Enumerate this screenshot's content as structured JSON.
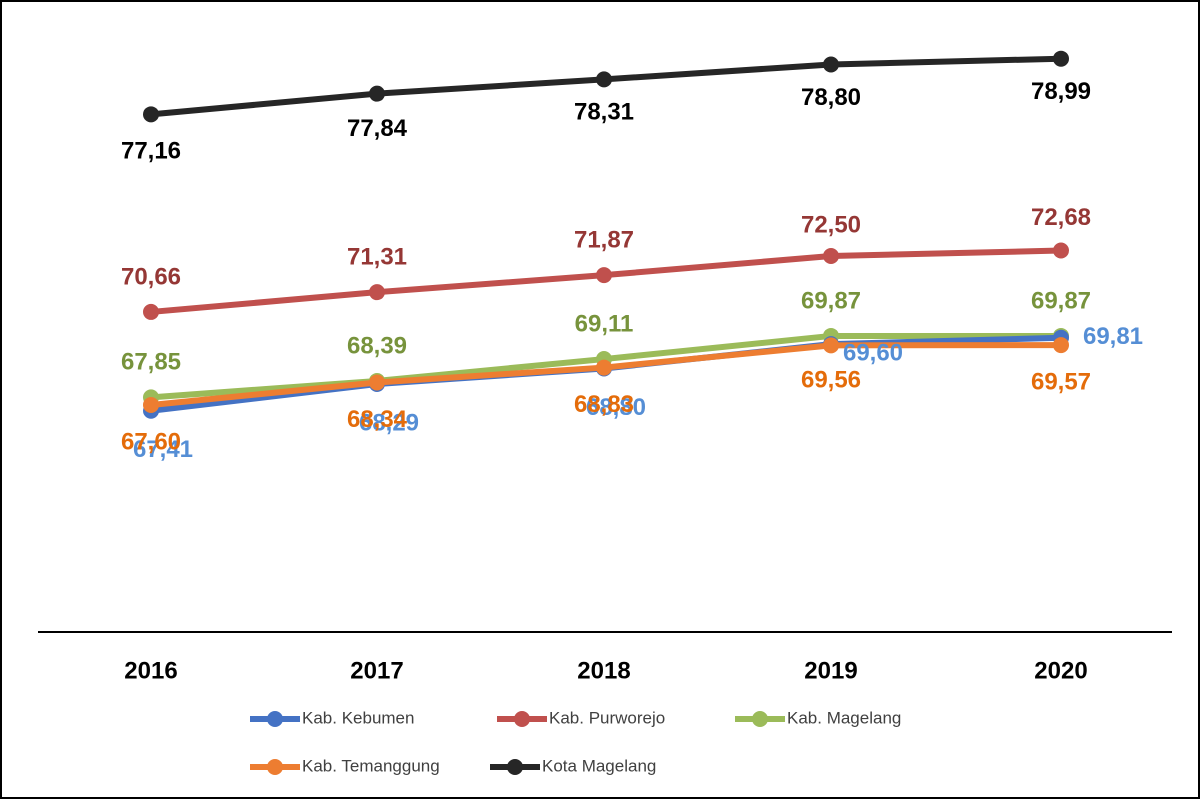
{
  "chart_data": {
    "type": "line",
    "x": [
      "2016",
      "2017",
      "2018",
      "2019",
      "2020"
    ],
    "ylim": [
      60,
      80
    ],
    "series": [
      {
        "name": "Kab. Kebumen",
        "color": "#4472c4",
        "label_color": "#558ed5",
        "values": [
          67.41,
          68.29,
          68.8,
          69.6,
          69.81
        ],
        "value_labels": [
          "67,41",
          "68,29",
          "68,80",
          "69,60",
          "69,81"
        ]
      },
      {
        "name": "Kab. Purworejo",
        "color": "#c0504d",
        "label_color": "#953735",
        "values": [
          70.66,
          71.31,
          71.87,
          72.5,
          72.68
        ],
        "value_labels": [
          "70,66",
          "71,31",
          "71,87",
          "72,50",
          "72,68"
        ]
      },
      {
        "name": "Kab. Magelang",
        "color": "#9bbb59",
        "label_color": "#77933c",
        "values": [
          67.85,
          68.39,
          69.11,
          69.87,
          69.87
        ],
        "value_labels": [
          "67,85",
          "68,39",
          "69,11",
          "69,87",
          "69,87"
        ]
      },
      {
        "name": "Kab. Temanggung",
        "color": "#ed7d31",
        "label_color": "#e46c0a",
        "values": [
          67.6,
          68.34,
          68.83,
          69.56,
          69.57
        ],
        "value_labels": [
          "67,60",
          "68,34",
          "68,83",
          "69,56",
          "69,57"
        ]
      },
      {
        "name": "Kota Magelang",
        "color": "#262626",
        "label_color": "#000000",
        "values": [
          77.16,
          77.84,
          78.31,
          78.8,
          78.99
        ],
        "value_labels": [
          "77,16",
          "77,84",
          "78,31",
          "78,80",
          "78,99"
        ]
      }
    ]
  }
}
